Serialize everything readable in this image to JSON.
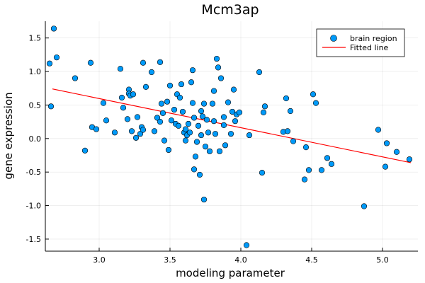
{
  "chart_data": {
    "type": "scatter",
    "title": "Mcm3ap",
    "xlabel": "modeling parameter",
    "ylabel": "gene expression",
    "xlim": [
      2.62,
      5.25
    ],
    "ylim": [
      -1.68,
      1.75
    ],
    "xticks": [
      3.0,
      3.5,
      4.0,
      4.5,
      5.0
    ],
    "xtick_labels": [
      "3.0",
      "3.5",
      "4.0",
      "4.5",
      "5.0"
    ],
    "yticks": [
      -1.5,
      -1.0,
      -0.5,
      0.0,
      0.5,
      1.0,
      1.5
    ],
    "ytick_labels": [
      "-1.5",
      "-1.0",
      "-0.5",
      "0.0",
      "0.5",
      "1.0",
      "1.5"
    ],
    "grid": true,
    "legend_position": "top-right",
    "series": [
      {
        "name": "brain region",
        "type": "scatter",
        "color": "#009AF9",
        "points": [
          [
            2.65,
            1.12
          ],
          [
            2.68,
            1.64
          ],
          [
            2.7,
            1.21
          ],
          [
            2.66,
            0.48
          ],
          [
            2.83,
            0.9
          ],
          [
            2.9,
            -0.18
          ],
          [
            2.94,
            1.13
          ],
          [
            2.95,
            0.17
          ],
          [
            2.98,
            0.14
          ],
          [
            3.03,
            0.53
          ],
          [
            3.05,
            0.27
          ],
          [
            3.11,
            0.09
          ],
          [
            3.15,
            1.04
          ],
          [
            3.16,
            0.61
          ],
          [
            3.17,
            0.46
          ],
          [
            3.2,
            0.29
          ],
          [
            3.21,
            0.73
          ],
          [
            3.21,
            0.67
          ],
          [
            3.22,
            0.64
          ],
          [
            3.23,
            0.11
          ],
          [
            3.24,
            0.66
          ],
          [
            3.26,
            0.01
          ],
          [
            3.27,
            0.32
          ],
          [
            3.29,
            0.07
          ],
          [
            3.3,
            0.17
          ],
          [
            3.31,
            1.13
          ],
          [
            3.31,
            0.13
          ],
          [
            3.33,
            0.77
          ],
          [
            3.37,
            0.99
          ],
          [
            3.39,
            0.11
          ],
          [
            3.41,
            0.31
          ],
          [
            3.43,
            1.14
          ],
          [
            3.43,
            0.25
          ],
          [
            3.44,
            0.52
          ],
          [
            3.45,
            0.38
          ],
          [
            3.46,
            -0.03
          ],
          [
            3.48,
            0.55
          ],
          [
            3.49,
            -0.17
          ],
          [
            3.5,
            0.79
          ],
          [
            3.51,
            0.27
          ],
          [
            3.53,
            0.43
          ],
          [
            3.54,
            0.22
          ],
          [
            3.55,
            0.66
          ],
          [
            3.56,
            0.19
          ],
          [
            3.57,
            0.61
          ],
          [
            3.58,
            0.81
          ],
          [
            3.59,
            0.4
          ],
          [
            3.6,
            0.09
          ],
          [
            3.61,
            -0.03
          ],
          [
            3.61,
            0.14
          ],
          [
            3.62,
            0.05
          ],
          [
            3.63,
            0.22
          ],
          [
            3.64,
            0.09
          ],
          [
            3.65,
            0.84
          ],
          [
            3.66,
            1.02
          ],
          [
            3.66,
            0.53
          ],
          [
            3.67,
            -0.46
          ],
          [
            3.67,
            0.31
          ],
          [
            3.68,
            -0.27
          ],
          [
            3.69,
            -0.05
          ],
          [
            3.7,
            0.19
          ],
          [
            3.71,
            -0.54
          ],
          [
            3.72,
            0.41
          ],
          [
            3.72,
            0.05
          ],
          [
            3.73,
            0.33
          ],
          [
            3.74,
            -0.91
          ],
          [
            3.74,
            0.52
          ],
          [
            3.75,
            -0.12
          ],
          [
            3.76,
            0.28
          ],
          [
            3.77,
            0.09
          ],
          [
            3.78,
            -0.19
          ],
          [
            3.8,
            0.52
          ],
          [
            3.81,
            0.71
          ],
          [
            3.81,
            0.26
          ],
          [
            3.82,
            0.07
          ],
          [
            3.83,
            1.19
          ],
          [
            3.84,
            1.06
          ],
          [
            3.85,
            -0.19
          ],
          [
            3.86,
            0.9
          ],
          [
            3.88,
            0.32
          ],
          [
            3.88,
            0.2
          ],
          [
            3.89,
            -0.1
          ],
          [
            3.91,
            0.54
          ],
          [
            3.93,
            0.07
          ],
          [
            3.94,
            0.4
          ],
          [
            3.95,
            0.73
          ],
          [
            3.96,
            0.26
          ],
          [
            3.97,
            0.36
          ],
          [
            3.99,
            0.39
          ],
          [
            4.04,
            -1.59
          ],
          [
            4.06,
            0.05
          ],
          [
            4.13,
            0.99
          ],
          [
            4.15,
            -0.51
          ],
          [
            4.16,
            0.39
          ],
          [
            4.17,
            0.48
          ],
          [
            4.3,
            0.1
          ],
          [
            4.32,
            0.6
          ],
          [
            4.33,
            0.11
          ],
          [
            4.35,
            0.41
          ],
          [
            4.37,
            -0.04
          ],
          [
            4.45,
            -0.61
          ],
          [
            4.46,
            -0.13
          ],
          [
            4.48,
            -0.47
          ],
          [
            4.51,
            0.66
          ],
          [
            4.53,
            0.53
          ],
          [
            4.57,
            -0.47
          ],
          [
            4.61,
            -0.29
          ],
          [
            4.64,
            -0.38
          ],
          [
            4.87,
            -1.01
          ],
          [
            4.97,
            0.13
          ],
          [
            5.02,
            -0.42
          ],
          [
            5.03,
            -0.07
          ],
          [
            5.1,
            -0.2
          ],
          [
            5.19,
            -0.31
          ]
        ]
      },
      {
        "name": "Fitted line",
        "type": "line",
        "color": "#FF0000",
        "points": [
          [
            2.67,
            0.74
          ],
          [
            5.2,
            -0.36
          ]
        ]
      }
    ]
  }
}
